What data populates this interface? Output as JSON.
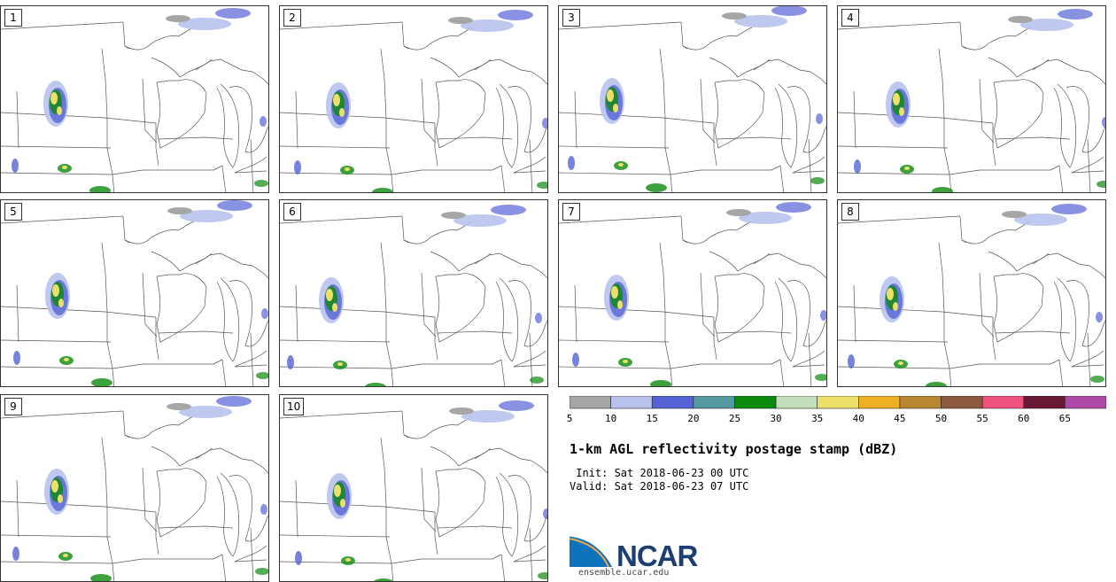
{
  "figure": {
    "title": "1-km AGL reflectivity postage stamp (dBZ)",
    "init_line": " Init: Sat 2018-06-23 00 UTC",
    "valid_line": "Valid: Sat 2018-06-23 07 UTC",
    "logo_text": "NCAR",
    "logo_url": "ensemble.ucar.edu"
  },
  "panels": [
    {
      "label": "1"
    },
    {
      "label": "2"
    },
    {
      "label": "3"
    },
    {
      "label": "4"
    },
    {
      "label": "5"
    },
    {
      "label": "6"
    },
    {
      "label": "7"
    },
    {
      "label": "8"
    },
    {
      "label": "9"
    },
    {
      "label": "10"
    }
  ],
  "colorbar": {
    "unit": "dBZ",
    "bins": [
      5,
      10,
      15,
      20,
      25,
      30,
      35,
      40,
      45,
      50,
      55,
      60,
      65,
      70
    ],
    "tick_labels": [
      "5",
      "10",
      "15",
      "20",
      "25",
      "30",
      "35",
      "40",
      "45",
      "50",
      "55",
      "60",
      "65"
    ],
    "colors": [
      "#a6a6a6",
      "#b8c2ec",
      "#5563d6",
      "#53999f",
      "#0c8a0c",
      "#c2deba",
      "#ece06a",
      "#eeb125",
      "#b98631",
      "#8e5a3e",
      "#f0527e",
      "#6b1836",
      "#ad4aa8"
    ]
  },
  "colors": {
    "map_lines": "#555555",
    "background": "#ffffff"
  }
}
